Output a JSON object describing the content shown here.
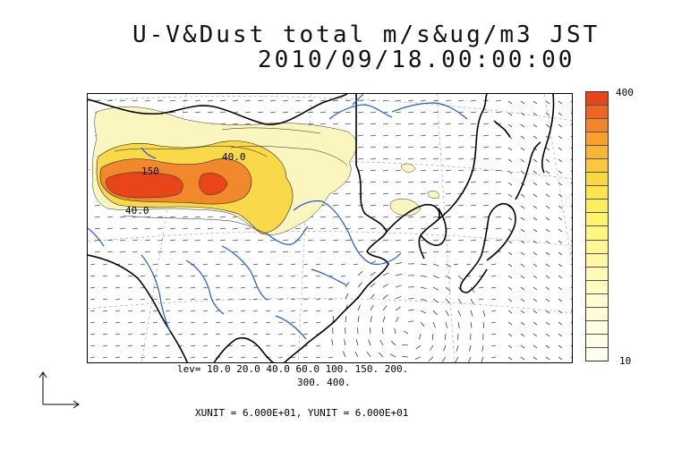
{
  "title": {
    "line1": "U-V&Dust total m/s&ug/m3 JST",
    "line2": "2010/09/18.00:00:00"
  },
  "contour_labels": [
    "150",
    "40.0",
    "40.0"
  ],
  "levels": {
    "line1": "lev= 10.0 20.0 40.0 60.0 100. 150. 200.",
    "line2": "300. 400."
  },
  "colorbar": {
    "max_label": "400",
    "min_label": "10",
    "colors": [
      "#e8451b",
      "#ef6522",
      "#f4842a",
      "#f7a02f",
      "#f9b636",
      "#fbc83b",
      "#fcd742",
      "#fde44c",
      "#feee5c",
      "#fff46e",
      "#fff680",
      "#fff892",
      "#fff9a4",
      "#fffab5",
      "#fffbc3",
      "#fffccf",
      "#fffdd9",
      "#fffde2",
      "#fffee8",
      "#fffeee"
    ]
  },
  "units": {
    "text": "XUNIT = 6.000E+01, YUNIT = 6.000E+01"
  },
  "colors": {
    "river": "#1e5bd6",
    "coast": "#000000",
    "dust_light": "#fbf6c0",
    "dust_mid": "#f9d84a",
    "dust_orange": "#f2882c",
    "dust_red": "#e8451b"
  }
}
